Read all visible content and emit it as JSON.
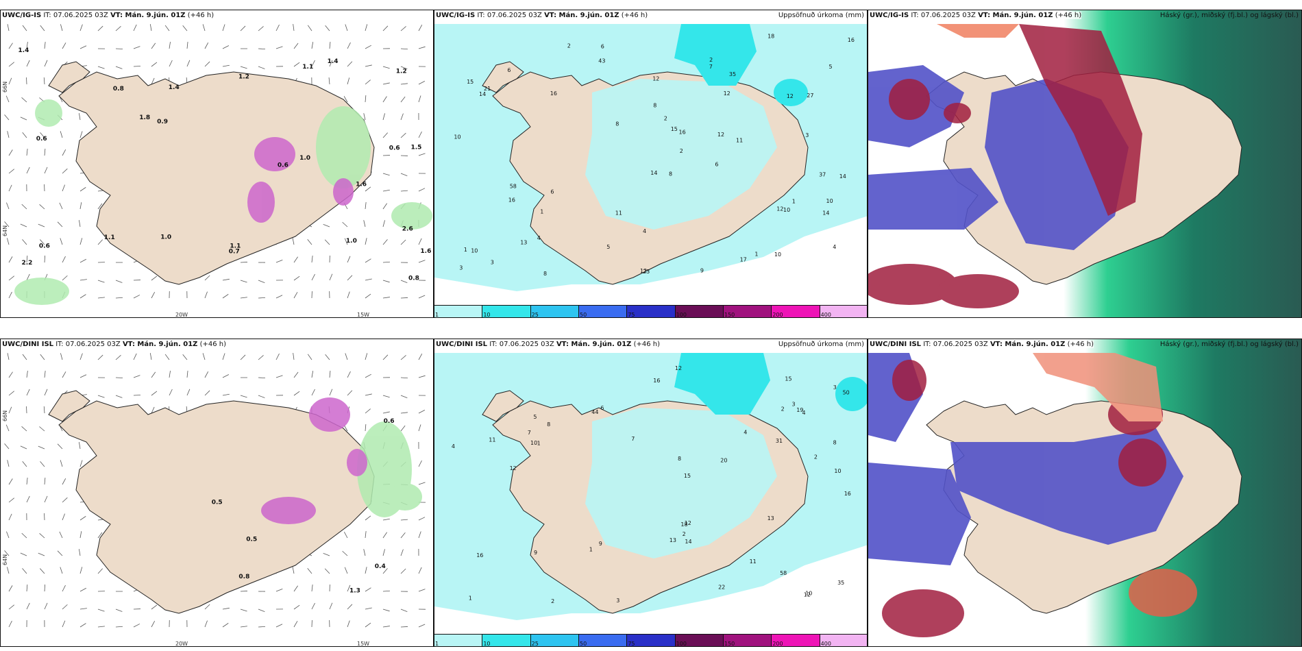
{
  "colors": {
    "land": "#eddcca",
    "precip_light": "#b8f5f5",
    "precip_mid": "#52e6ea",
    "snow_purple": "#cc66cc",
    "green_rain": "#b0ebb0",
    "cloud_high": "#a11f3f",
    "cloud_mid": "#5252c8",
    "cloud_low": "#2ecf91"
  },
  "panels": [
    {
      "model": "UWC/IG-IS",
      "it": "IT: 07.06.2025 03Z",
      "vt": "VT: Mán. 9.jún. 01Z",
      "lead": "(+46 h)",
      "right": ""
    },
    {
      "model": "UWC/IG-IS",
      "it": "IT: 07.06.2025 03Z",
      "vt": "VT: Mán. 9.jún. 01Z",
      "lead": "(+46 h)",
      "right": "Uppsöfnuð úrkoma (mm)"
    },
    {
      "model": "UWC/IG-IS",
      "it": "IT: 07.06.2025 03Z",
      "vt": "VT: Mán. 9.jún. 01Z",
      "lead": "(+46 h)",
      "right": "Háský (gr.), miðský (fj.bl.) og lágský (bl.)"
    },
    {
      "model": "UWC/DINI ISL",
      "it": "IT: 07.06.2025 03Z",
      "vt": "VT: Mán. 9.jún. 01Z",
      "lead": "(+46 h)",
      "right": ""
    },
    {
      "model": "UWC/DINI ISL",
      "it": "IT: 07.06.2025 03Z",
      "vt": "VT: Mán. 9.jún. 01Z",
      "lead": "(+46 h)",
      "right": "Uppsöfnuð úrkoma (mm)"
    },
    {
      "model": "UWC/DINI ISL",
      "it": "IT: 07.06.2025 03Z",
      "vt": "VT: Mán. 9.jún. 01Z",
      "lead": "(+46 h)",
      "right": "Háský (gr.), miðský (fj.bl.) og lágský (bl.)"
    }
  ],
  "axis_labels": {
    "lon_20w": "20W",
    "lon_15w": "15W",
    "lat_66n": "66N",
    "lat_64n": "64N"
  },
  "colorbar": {
    "labels": [
      "1",
      "10",
      "25",
      "50",
      "75",
      "100",
      "150",
      "200",
      "400"
    ],
    "colors": [
      "#b8f5f5",
      "#34e6ea",
      "#2ec4f0",
      "#3a6cf0",
      "#2a30c8",
      "#6a0e56",
      "#a0127e",
      "#ee14b6",
      "#f2b4f2"
    ]
  },
  "labels_top_left": [
    "1.0",
    "1.1",
    "1.2",
    "0.8",
    "1.6",
    "1.6",
    "1.5",
    "0.6",
    "1.1",
    "1.4",
    "0.6",
    "0.6",
    "1.4",
    "1.1",
    "0.6",
    "0.9",
    "1.4",
    "2.6",
    "1.0",
    "0.8",
    "2.2",
    "1.2",
    "0.7",
    "1.8",
    "1.0"
  ],
  "labels_bottom_left": [
    "0.8",
    "0.5",
    "1.3",
    "0.6",
    "0.5",
    "0.4"
  ],
  "labels_top_mid": [
    "1",
    "5",
    "6",
    "8",
    "6",
    "4",
    "3",
    "6",
    "10",
    "12",
    "14",
    "15",
    "16",
    "17",
    "10",
    "15",
    "37",
    "58",
    "35",
    "16",
    "16",
    "14",
    "27",
    "23",
    "18",
    "43",
    "21",
    "12",
    "12",
    "10",
    "7",
    "8",
    "12",
    "8",
    "3",
    "4",
    "2",
    "11",
    "12",
    "9",
    "6",
    "1",
    "10",
    "5",
    "2",
    "13",
    "10",
    "14",
    "16",
    "14",
    "11",
    "12",
    "2",
    "3",
    "1",
    "2",
    "8",
    "4",
    "1"
  ],
  "labels_bottom_mid": [
    "16",
    "2",
    "4",
    "11",
    "7",
    "8",
    "1",
    "13",
    "3",
    "12",
    "9",
    "6",
    "15",
    "20",
    "35",
    "58",
    "44",
    "31",
    "22",
    "16",
    "12",
    "13",
    "15",
    "18",
    "12",
    "50",
    "10",
    "19",
    "10",
    "16",
    "12",
    "8",
    "5",
    "4",
    "2",
    "11",
    "14",
    "10",
    "2",
    "1",
    "3",
    "9",
    "8",
    "7",
    "4",
    "2",
    "1",
    "3"
  ]
}
